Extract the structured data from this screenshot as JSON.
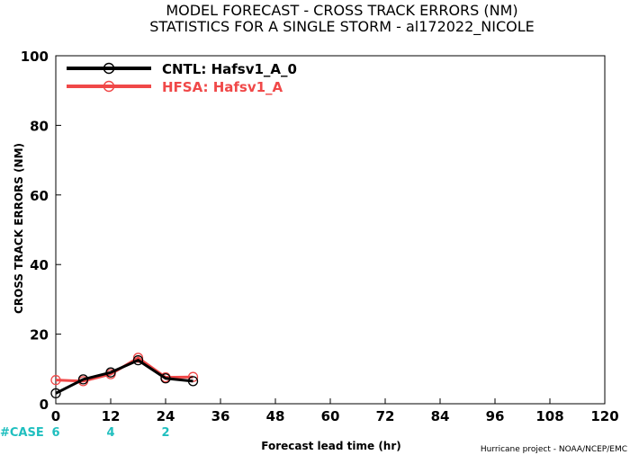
{
  "chart_data": {
    "type": "line",
    "title": "MODEL FORECAST - CROSS TRACK ERRORS (NM)",
    "subtitle": "STATISTICS FOR A SINGLE STORM - al172022_NICOLE",
    "xlabel": "Forecast lead time (hr)",
    "ylabel": "CROSS TRACK ERRORS (NM)",
    "xlim": [
      0,
      120
    ],
    "ylim": [
      0,
      100
    ],
    "xticks": [
      0,
      12,
      24,
      36,
      48,
      60,
      72,
      84,
      96,
      108,
      120
    ],
    "yticks": [
      0,
      20,
      40,
      60,
      80,
      100
    ],
    "legend_position": "top-left",
    "series": [
      {
        "name": "CNTL: Hafsv1_A_0",
        "color": "#000000",
        "x": [
          0,
          6,
          12,
          18,
          24,
          30
        ],
        "y": [
          3,
          7,
          9,
          12.5,
          7.3,
          6.5
        ]
      },
      {
        "name": "HFSA: Hafsv1_A",
        "color": "#f04848",
        "x": [
          0,
          6,
          12,
          18,
          24,
          30
        ],
        "y": [
          6.8,
          6.5,
          8.5,
          13.2,
          7.6,
          7.7
        ]
      }
    ],
    "case_label": "#CASE",
    "cases": [
      {
        "x": 0,
        "count": "6"
      },
      {
        "x": 12,
        "count": "4"
      },
      {
        "x": 24,
        "count": "2"
      }
    ]
  },
  "credit": "Hurricane project - NOAA/NCEP/EMC"
}
